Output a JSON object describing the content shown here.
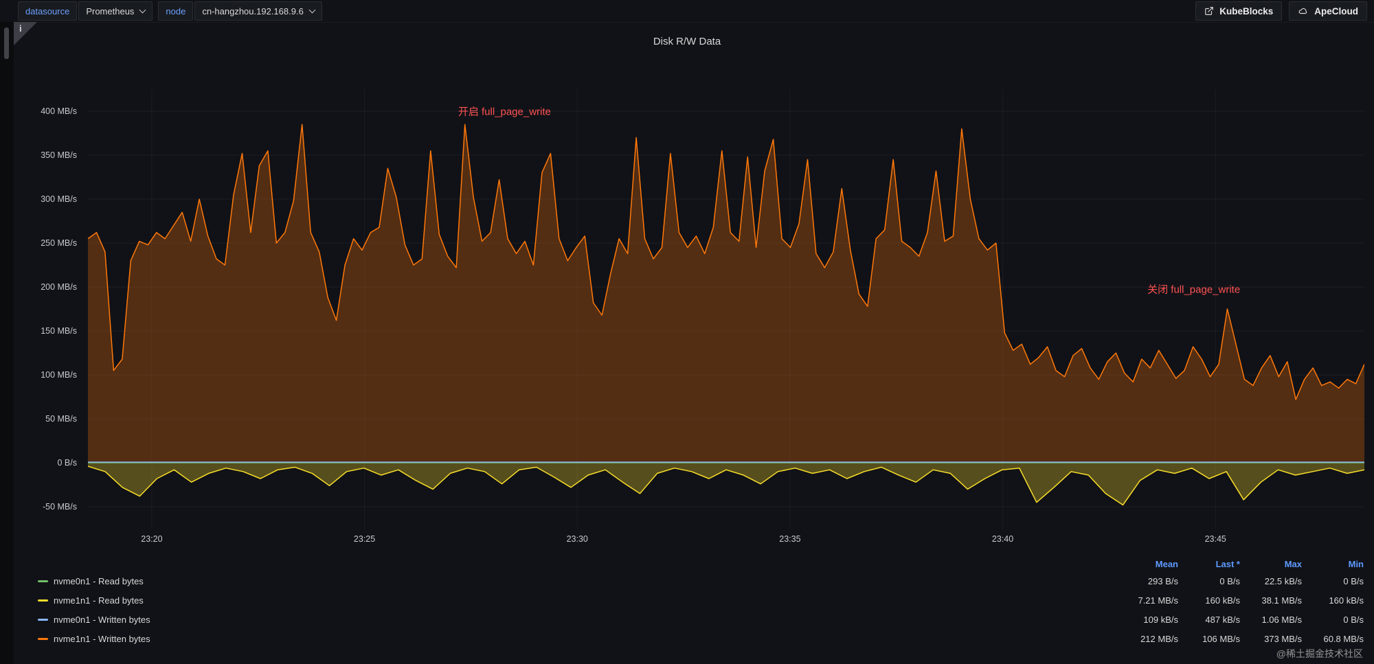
{
  "topbar": {
    "variables": [
      {
        "label": "datasource",
        "value": "Prometheus"
      },
      {
        "label": "node",
        "value": "cn-hangzhou.192.168.9.6"
      }
    ],
    "buttons": [
      {
        "label": "KubeBlocks",
        "icon": "external-link-icon"
      },
      {
        "label": "ApeCloud",
        "icon": "cloud-icon"
      }
    ]
  },
  "panel": {
    "title": "Disk R/W Data",
    "info_icon": "i"
  },
  "chart_data": {
    "type": "area",
    "title": "Disk R/W Data",
    "unit": "MB/s",
    "grid": true,
    "legend_position": "bottom",
    "x_axis": {
      "start_min": 0,
      "end_min": 30,
      "ticks": [
        {
          "t": 1.5,
          "label": "23:20"
        },
        {
          "t": 6.5,
          "label": "23:25"
        },
        {
          "t": 11.5,
          "label": "23:30"
        },
        {
          "t": 16.5,
          "label": "23:35"
        },
        {
          "t": 21.5,
          "label": "23:40"
        },
        {
          "t": 26.5,
          "label": "23:45"
        }
      ]
    },
    "y_axis": {
      "min": -75,
      "max": 425,
      "ticks": [
        {
          "v": 400,
          "label": "400 MB/s"
        },
        {
          "v": 350,
          "label": "350 MB/s"
        },
        {
          "v": 300,
          "label": "300 MB/s"
        },
        {
          "v": 250,
          "label": "250 MB/s"
        },
        {
          "v": 200,
          "label": "200 MB/s"
        },
        {
          "v": 150,
          "label": "150 MB/s"
        },
        {
          "v": 100,
          "label": "100 MB/s"
        },
        {
          "v": 50,
          "label": "50 MB/s"
        },
        {
          "v": 0,
          "label": "0 B/s"
        },
        {
          "v": -50,
          "label": "-50 MB/s"
        }
      ]
    },
    "draw_order": [
      3,
      1,
      0,
      2
    ],
    "series": [
      {
        "name": "nvme0n1 - Read bytes",
        "color": "#73bf69",
        "width": 1.2,
        "values": [
          0,
          0
        ]
      },
      {
        "name": "nvme1n1 - Read bytes",
        "color": "#fade2a",
        "width": 1.5,
        "fill_opacity": 0.3,
        "values": [
          -4,
          -10,
          -28,
          -38,
          -18,
          -8,
          -22,
          -12,
          -6,
          -10,
          -18,
          -8,
          -5,
          -12,
          -26,
          -10,
          -6,
          -14,
          -8,
          -20,
          -30,
          -12,
          -6,
          -10,
          -24,
          -8,
          -5,
          -16,
          -28,
          -14,
          -8,
          -22,
          -35,
          -12,
          -6,
          -10,
          -18,
          -8,
          -14,
          -24,
          -10,
          -6,
          -12,
          -8,
          -18,
          -10,
          -5,
          -14,
          -22,
          -8,
          -12,
          -30,
          -18,
          -8,
          -6,
          -45,
          -28,
          -10,
          -14,
          -35,
          -48,
          -20,
          -8,
          -12,
          -6,
          -18,
          -10,
          -42,
          -22,
          -8,
          -14,
          -10,
          -6,
          -12,
          -8
        ]
      },
      {
        "name": "nvme0n1 - Written bytes",
        "color": "#8ab8ff",
        "width": 1.4,
        "values": [
          0.8,
          0.8
        ]
      },
      {
        "name": "nvme1n1 - Written bytes",
        "color": "#ff780a",
        "width": 1.5,
        "fill_opacity": 0.28,
        "values": [
          255,
          262,
          240,
          105,
          118,
          230,
          252,
          248,
          262,
          255,
          270,
          285,
          252,
          300,
          258,
          232,
          225,
          305,
          352,
          262,
          338,
          355,
          250,
          262,
          298,
          385,
          262,
          240,
          188,
          162,
          225,
          255,
          242,
          262,
          268,
          335,
          302,
          248,
          225,
          232,
          355,
          260,
          235,
          222,
          385,
          302,
          252,
          262,
          322,
          255,
          238,
          252,
          225,
          330,
          352,
          255,
          230,
          245,
          258,
          182,
          168,
          215,
          255,
          238,
          370,
          255,
          232,
          245,
          352,
          262,
          245,
          258,
          238,
          268,
          355,
          262,
          252,
          348,
          245,
          332,
          368,
          255,
          245,
          272,
          345,
          238,
          222,
          240,
          312,
          242,
          192,
          178,
          255,
          265,
          345,
          252,
          245,
          235,
          262,
          332,
          252,
          258,
          380,
          300,
          255,
          242,
          250,
          148,
          128,
          135,
          112,
          120,
          132,
          105,
          98,
          122,
          130,
          108,
          95,
          115,
          125,
          102,
          92,
          118,
          108,
          128,
          112,
          96,
          105,
          132,
          118,
          98,
          112,
          175,
          135,
          95,
          88,
          108,
          122,
          98,
          115,
          72,
          95,
          108,
          88,
          92,
          85,
          95,
          90,
          112
        ]
      }
    ],
    "annotations": [
      {
        "t": 8.7,
        "v": 400,
        "text": "开启 full_page_write",
        "color": "#ff5252"
      },
      {
        "t": 24.9,
        "v": 198,
        "text": "关闭 full_page_write",
        "color": "#ff5252"
      }
    ]
  },
  "legend": {
    "headers": [
      "Mean",
      "Last *",
      "Max",
      "Min"
    ],
    "rows": [
      {
        "name": "nvme0n1 - Read bytes",
        "color": "#73bf69",
        "mean": "293 B/s",
        "last": "0 B/s",
        "max": "22.5 kB/s",
        "min": "0 B/s"
      },
      {
        "name": "nvme1n1 - Read bytes",
        "color": "#fade2a",
        "mean": "7.21 MB/s",
        "last": "160 kB/s",
        "max": "38.1 MB/s",
        "min": "160 kB/s"
      },
      {
        "name": "nvme0n1 - Written bytes",
        "color": "#8ab8ff",
        "mean": "109 kB/s",
        "last": "487 kB/s",
        "max": "1.06 MB/s",
        "min": "0 B/s"
      },
      {
        "name": "nvme1n1 - Written bytes",
        "color": "#ff780a",
        "mean": "212 MB/s",
        "last": "106 MB/s",
        "max": "373 MB/s",
        "min": "60.8 MB/s"
      }
    ]
  },
  "watermark": "@稀土掘金技术社区"
}
